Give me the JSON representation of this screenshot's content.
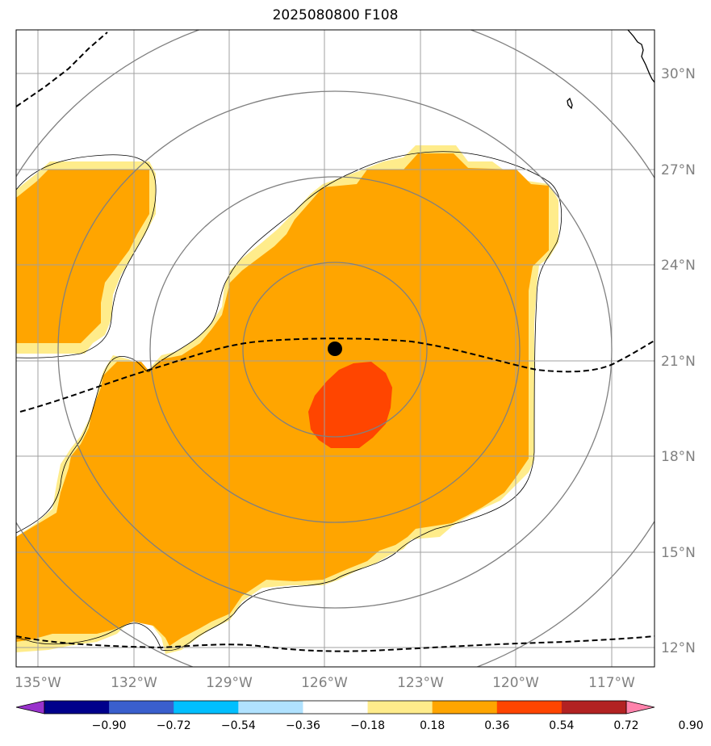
{
  "title": "2025080800 F108",
  "map": {
    "lon_range": [
      -135.5,
      -115.5
    ],
    "lat_range": [
      11.5,
      31.5
    ],
    "lon_ticks": [
      "135°W",
      "132°W",
      "129°W",
      "126°W",
      "123°W",
      "120°W",
      "117°W"
    ],
    "lat_ticks": [
      "30°N",
      "27°N",
      "24°N",
      "21°N",
      "18°N",
      "15°N",
      "12°N"
    ],
    "storm_center": {
      "lon": -125.6,
      "lat": 21.4
    },
    "range_rings_count": 4,
    "grid": true,
    "contour_line_style": "dashed",
    "fill_colors": {
      "light": "#ffec8b",
      "orange": "#ffa500",
      "red": "#ff4500"
    }
  },
  "colorbar": {
    "levels": [
      "−0.90",
      "−0.72",
      "−0.54",
      "−0.36",
      "−0.18",
      "0.18",
      "0.36",
      "0.54",
      "0.72",
      "0.90"
    ],
    "colors": [
      "#9932cc",
      "#00008b",
      "#3a5fcd",
      "#00bfff",
      "#b0e2ff",
      "#ffffff",
      "#ffec8b",
      "#ffa500",
      "#ff4500",
      "#b22222",
      "#ff82ab"
    ],
    "extend": "both"
  }
}
